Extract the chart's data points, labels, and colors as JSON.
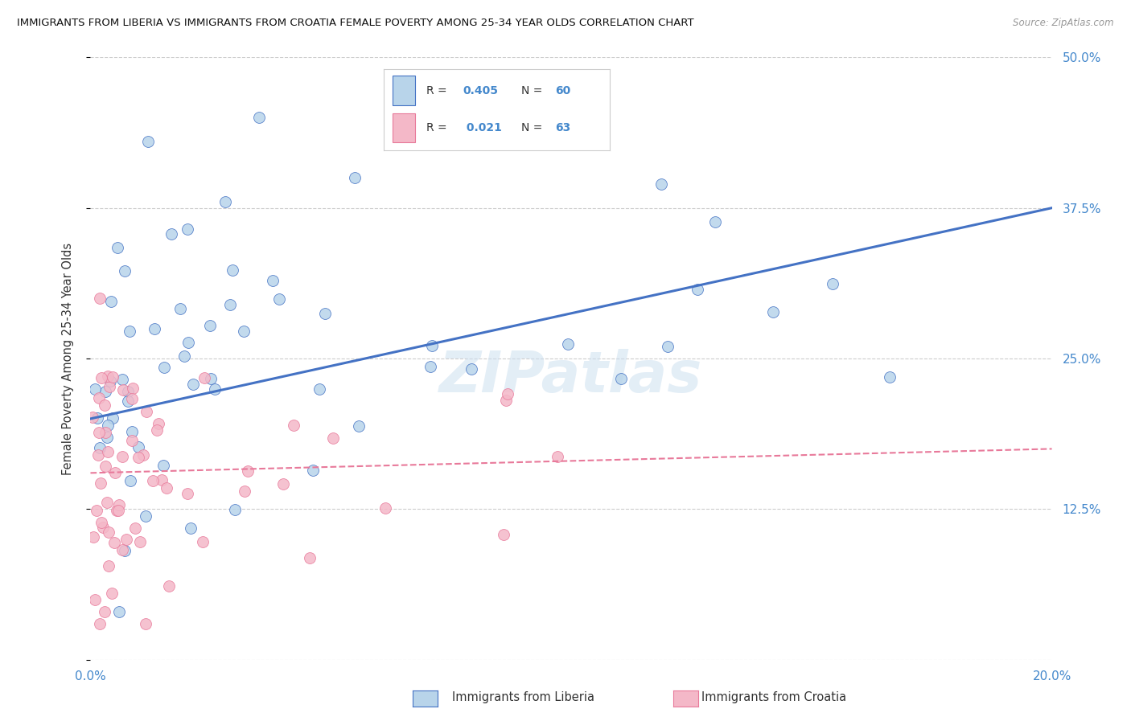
{
  "title": "IMMIGRANTS FROM LIBERIA VS IMMIGRANTS FROM CROATIA FEMALE POVERTY AMONG 25-34 YEAR OLDS CORRELATION CHART",
  "source": "Source: ZipAtlas.com",
  "xlabel_liberia": "Immigrants from Liberia",
  "xlabel_croatia": "Immigrants from Croatia",
  "ylabel": "Female Poverty Among 25-34 Year Olds",
  "xlim": [
    0.0,
    0.2
  ],
  "ylim": [
    0.0,
    0.5
  ],
  "yticks": [
    0.0,
    0.125,
    0.25,
    0.375,
    0.5
  ],
  "ytick_labels": [
    "",
    "12.5%",
    "25.0%",
    "37.5%",
    "50.0%"
  ],
  "legend_liberia_R": "0.405",
  "legend_liberia_N": "60",
  "legend_croatia_R": "0.021",
  "legend_croatia_N": "63",
  "color_liberia": "#b8d4ea",
  "color_liberia_line": "#4472c4",
  "color_liberia_edge": "#4472c4",
  "color_croatia": "#f4b8c8",
  "color_croatia_line": "#e8799a",
  "color_croatia_edge": "#e8799a",
  "watermark": "ZIPatlas",
  "liberia_trend_x": [
    0.0,
    0.2
  ],
  "liberia_trend_y": [
    0.2,
    0.375
  ],
  "croatia_trend_x": [
    0.0,
    0.2
  ],
  "croatia_trend_y": [
    0.155,
    0.175
  ]
}
